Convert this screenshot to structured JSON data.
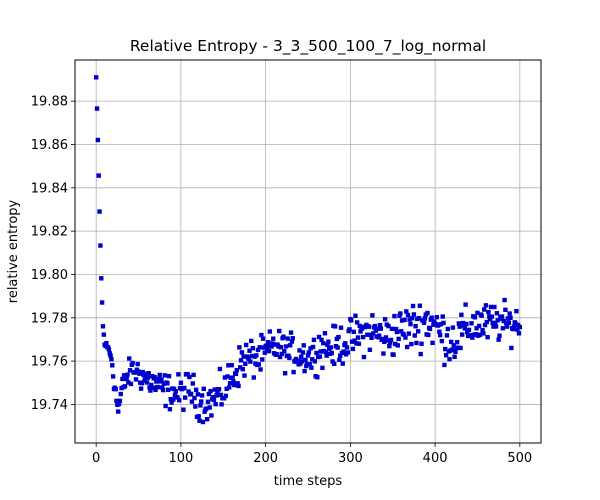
{
  "chart_data": {
    "type": "scatter",
    "title": "Relative Entropy - 3_3_500_100_7_log_normal",
    "xlabel": "time steps",
    "ylabel": "relative entropy",
    "xlim": [
      -25,
      525
    ],
    "ylim": [
      19.7222,
      19.899
    ],
    "xticks": [
      0,
      100,
      200,
      300,
      400,
      500
    ],
    "yticks": [
      19.74,
      19.76,
      19.78,
      19.8,
      19.82,
      19.84,
      19.86,
      19.88
    ],
    "ytick_labels": [
      "19.74",
      "19.76",
      "19.78",
      "19.80",
      "19.82",
      "19.84",
      "19.86",
      "19.88"
    ],
    "grid": true,
    "marker": "square",
    "color": "#0000cc",
    "anchors": [
      [
        0,
        19.891
      ],
      [
        2,
        19.862
      ],
      [
        4,
        19.829
      ],
      [
        6,
        19.798
      ],
      [
        8,
        19.776
      ],
      [
        10,
        19.768
      ],
      [
        14,
        19.766
      ],
      [
        18,
        19.762
      ],
      [
        22,
        19.748
      ],
      [
        26,
        19.737
      ],
      [
        30,
        19.746
      ],
      [
        35,
        19.752
      ],
      [
        45,
        19.756
      ],
      [
        55,
        19.753
      ],
      [
        70,
        19.749
      ],
      [
        85,
        19.746
      ],
      [
        100,
        19.745
      ],
      [
        110,
        19.748
      ],
      [
        120,
        19.742
      ],
      [
        135,
        19.741
      ],
      [
        150,
        19.746
      ],
      [
        160,
        19.753
      ],
      [
        175,
        19.761
      ],
      [
        185,
        19.761
      ],
      [
        195,
        19.762
      ],
      [
        210,
        19.767
      ],
      [
        225,
        19.764
      ],
      [
        240,
        19.763
      ],
      [
        255,
        19.762
      ],
      [
        265,
        19.767
      ],
      [
        280,
        19.766
      ],
      [
        295,
        19.769
      ],
      [
        310,
        19.772
      ],
      [
        325,
        19.774
      ],
      [
        340,
        19.771
      ],
      [
        355,
        19.773
      ],
      [
        365,
        19.775
      ],
      [
        375,
        19.776
      ],
      [
        390,
        19.779
      ],
      [
        400,
        19.776
      ],
      [
        410,
        19.772
      ],
      [
        420,
        19.769
      ],
      [
        430,
        19.772
      ],
      [
        445,
        19.777
      ],
      [
        460,
        19.777
      ],
      [
        475,
        19.778
      ],
      [
        490,
        19.777
      ],
      [
        500,
        19.778
      ]
    ],
    "noise_amplitude": [
      [
        0,
        0.0
      ],
      [
        10,
        0.001
      ],
      [
        20,
        0.004
      ],
      [
        40,
        0.006
      ],
      [
        100,
        0.007
      ],
      [
        180,
        0.008
      ],
      [
        200,
        0.007
      ],
      [
        300,
        0.008
      ],
      [
        400,
        0.01
      ],
      [
        500,
        0.007
      ]
    ]
  }
}
